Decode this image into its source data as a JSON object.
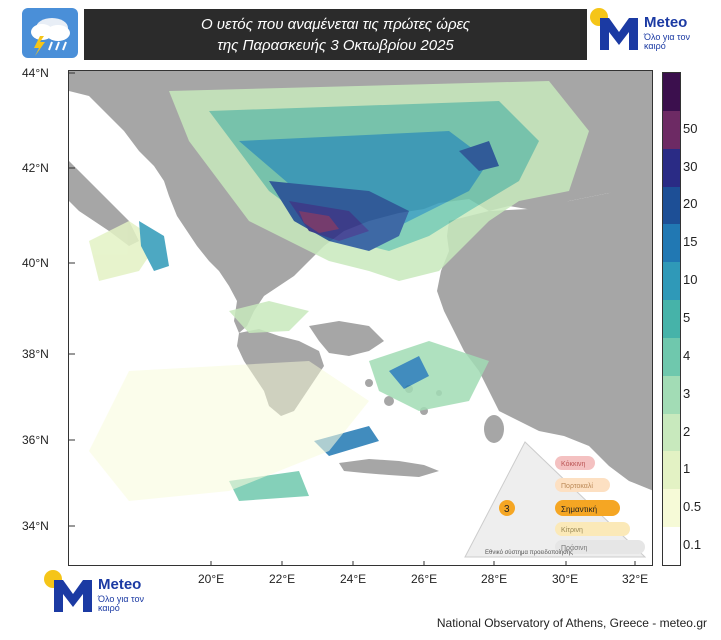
{
  "header": {
    "title_line1": "Ο υετός που αναμένεται τις πρώτες ώρες",
    "title_line2": "της Παρασκευής 3 Οκτωβρίου 2025",
    "weather_icon": "rain-cloud-icon"
  },
  "logo": {
    "brand": "Meteo",
    "tagline": "Όλο για τον καιρό",
    "colors": {
      "brand_blue": "#1b3aa3",
      "sun": "#f5c518"
    }
  },
  "map": {
    "lat_labels": [
      "44°N",
      "42°N",
      "40°N",
      "38°N",
      "36°N",
      "34°N"
    ],
    "lon_labels": [
      "20°E",
      "22°E",
      "24°E",
      "26°E",
      "28°E",
      "30°E",
      "32°E"
    ],
    "extent": {
      "lon": [
        17.5,
        33.0
      ],
      "lat": [
        33.0,
        44.0
      ]
    },
    "land_color": "#a6a6a6",
    "sea_color": "#ffffff"
  },
  "colorbar": {
    "unit": "",
    "levels": [
      {
        "label": "0.1",
        "color": "#ffffff"
      },
      {
        "label": "0.5",
        "color": "#f6fad7"
      },
      {
        "label": "1",
        "color": "#e3f2c4"
      },
      {
        "label": "2",
        "color": "#c8e9bd"
      },
      {
        "label": "3",
        "color": "#a2dcb5"
      },
      {
        "label": "4",
        "color": "#6fc8ad"
      },
      {
        "label": "5",
        "color": "#46b3a9"
      },
      {
        "label": "10",
        "color": "#2f99b8"
      },
      {
        "label": "15",
        "color": "#2178b3"
      },
      {
        "label": "20",
        "color": "#1d4f96"
      },
      {
        "label": "30",
        "color": "#2a2b85"
      },
      {
        "label": "50",
        "color": "#6d2a64"
      },
      {
        "label": "",
        "color": "#3b0f4d"
      }
    ]
  },
  "risk_legend": {
    "items": [
      "Κόκκινη",
      "Πορτοκαλί",
      "Κίτρινη",
      "Πράσινη"
    ],
    "active_level": "3",
    "active_label": "Σημαντική",
    "caption": "Εθνικό σύστημα προειδοποίησης"
  },
  "footer": {
    "attribution": "National Observatory of Athens, Greece - meteo.gr"
  }
}
